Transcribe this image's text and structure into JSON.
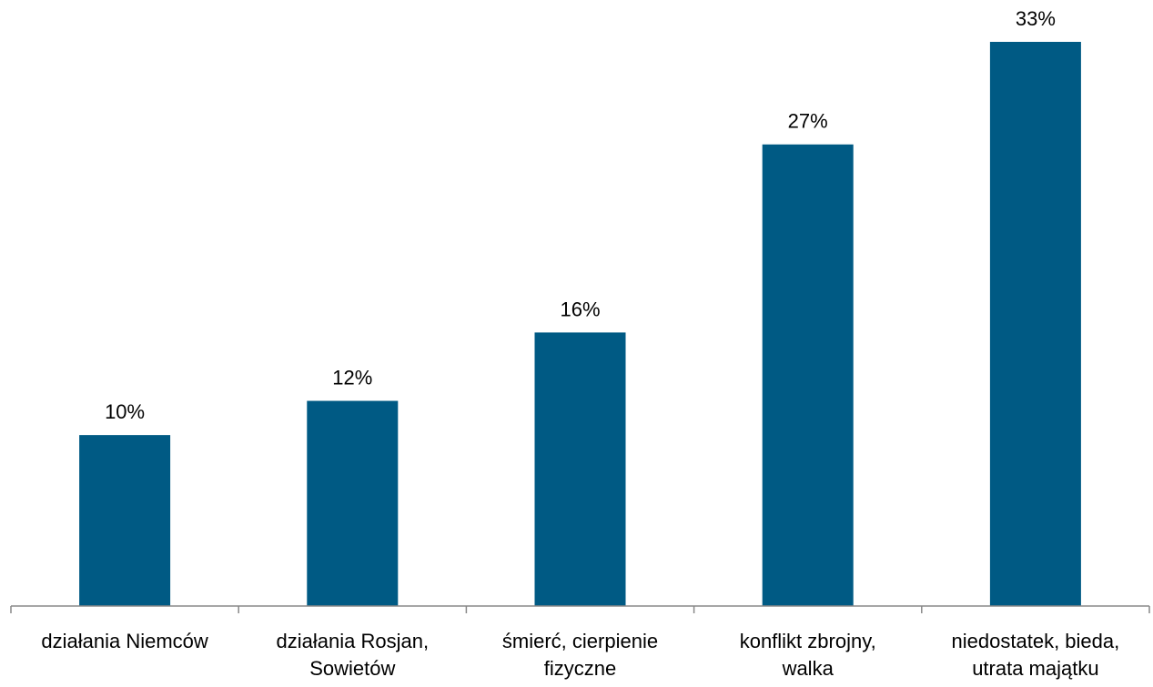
{
  "chart_data": {
    "type": "bar",
    "title": "",
    "xlabel": "",
    "ylabel": "",
    "categories": [
      [
        "działania Niemców"
      ],
      [
        "działania Rosjan,",
        "Sowietów"
      ],
      [
        "śmierć, cierpienie",
        "fizyczne"
      ],
      [
        "konflikt zbrojny,",
        "walka"
      ],
      [
        "niedostatek, bieda,",
        "utrata majątku"
      ]
    ],
    "values": [
      10,
      12,
      16,
      27,
      33
    ],
    "value_labels": [
      "10%",
      "12%",
      "16%",
      "27%",
      "33%"
    ],
    "ylim": [
      0,
      34
    ],
    "grid": false,
    "legend": "none",
    "bar_color": "#005a84"
  }
}
